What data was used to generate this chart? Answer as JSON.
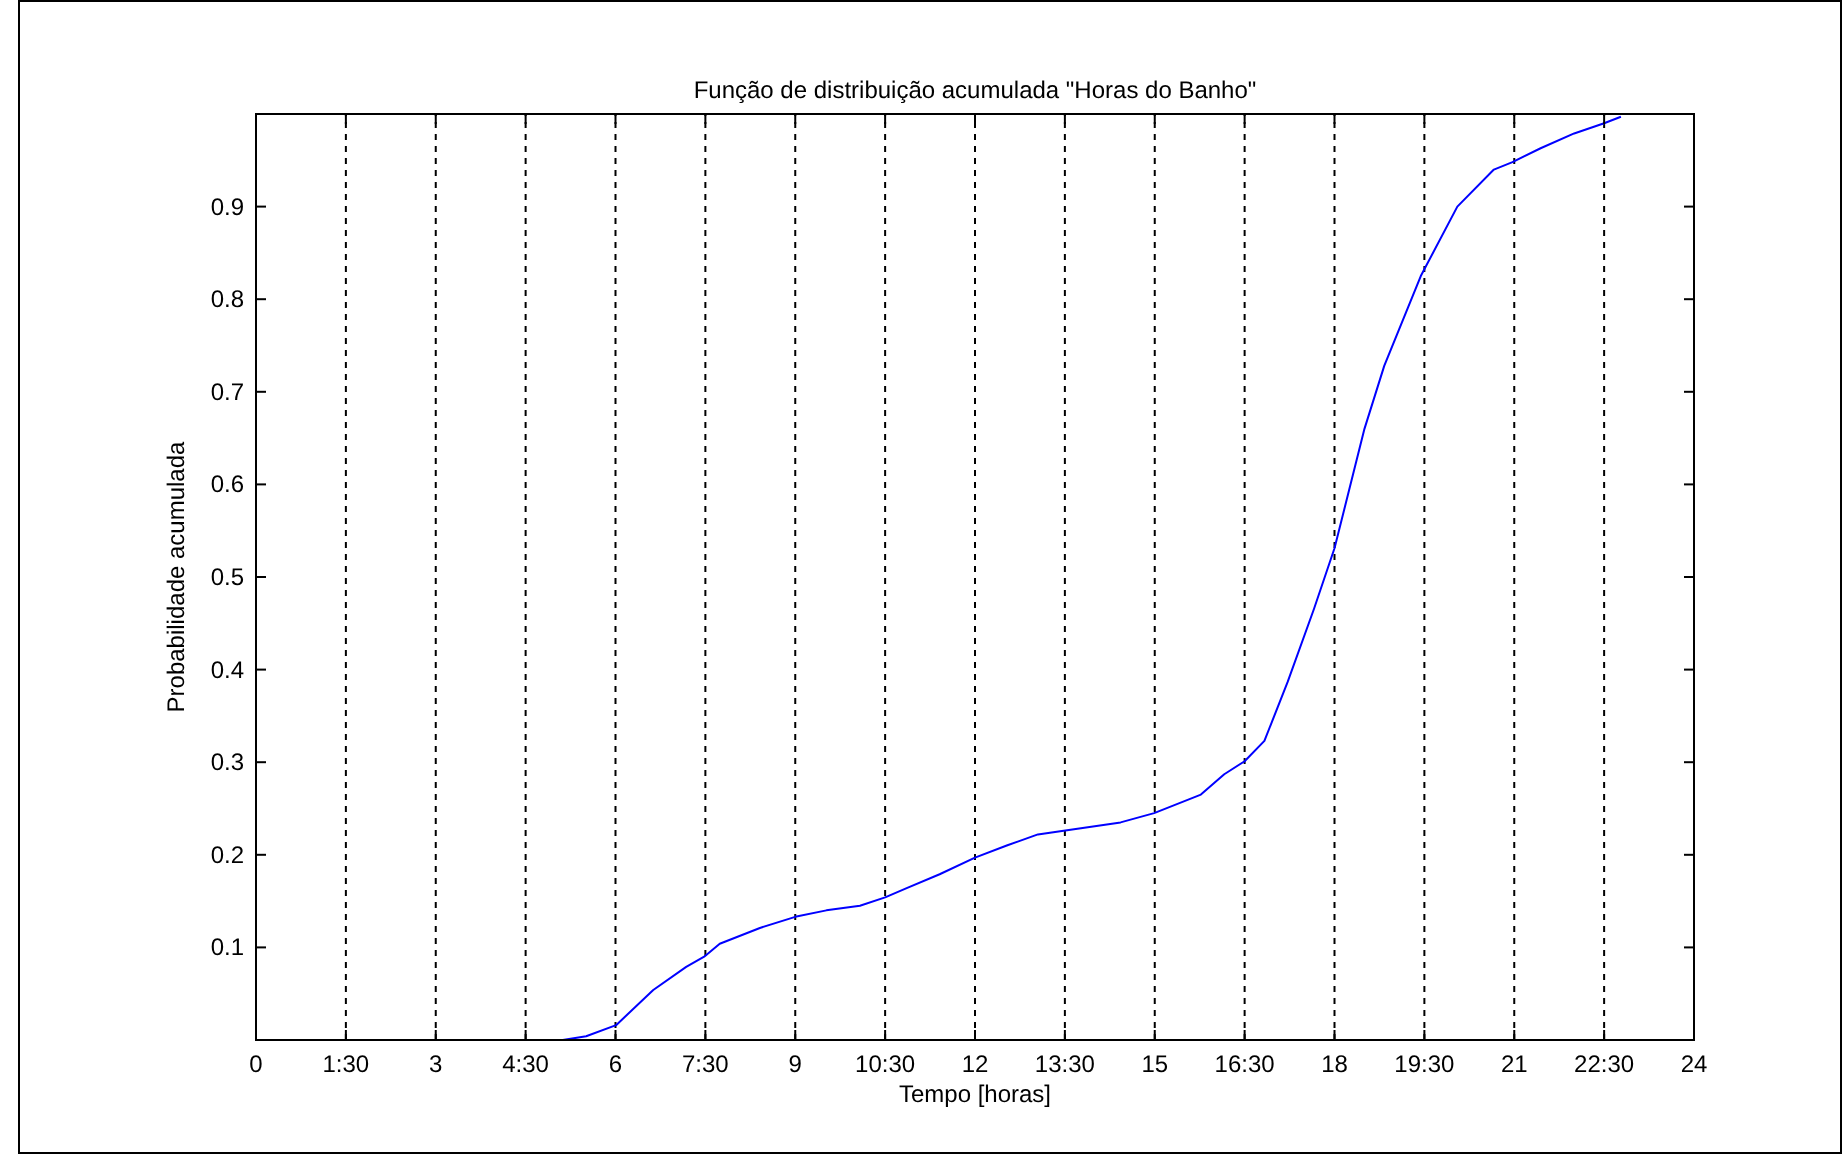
{
  "chart_data": {
    "type": "line",
    "title": "Função de distribuição acumulada \"Horas do Banho\"",
    "xlabel": "Tempo [horas]",
    "ylabel": "Probabilidade acumulada",
    "xlim": [
      0,
      24
    ],
    "xticks": [
      0,
      {
        "value": 1.5,
        "label": "1:30"
      },
      3,
      {
        "value": 4.5,
        "label": "4:30"
      },
      6,
      {
        "value": 7.5,
        "label": "7:30"
      },
      9,
      {
        "value": 10.5,
        "label": "10:30"
      },
      12,
      {
        "value": 13.5,
        "label": "13:30"
      },
      15,
      {
        "value": 16.5,
        "label": "16:30"
      },
      18,
      {
        "value": 19.5,
        "label": "19:30"
      },
      21,
      {
        "value": 22.5,
        "label": "22:30"
      },
      24
    ],
    "ylim": [
      0,
      1
    ],
    "yticks": [
      0.1,
      0.2,
      0.3,
      0.4,
      0.5,
      0.6,
      0.7,
      0.8,
      0.9
    ],
    "grid": "x",
    "line_style": "solid",
    "series": [
      {
        "color": "#0000ff",
        "x": [
          5.12,
          5.51,
          6.01,
          6.63,
          7.18,
          7.48,
          7.74,
          8.41,
          9.0,
          9.52,
          10.08,
          10.5,
          10.86,
          11.41,
          12.0,
          12.53,
          13.05,
          13.48,
          14.43,
          14.99,
          15.77,
          16.16,
          16.5,
          16.83,
          17.22,
          17.66,
          18.0,
          18.5,
          18.83,
          19.44,
          20.05,
          20.66,
          20.97,
          21.44,
          22.0,
          22.5,
          22.78
        ],
        "values": [
          0,
          0.004,
          0.016,
          0.054,
          0.079,
          0.09,
          0.104,
          0.121,
          0.133,
          0.14,
          0.145,
          0.154,
          0.164,
          0.179,
          0.197,
          0.21,
          0.222,
          0.226,
          0.235,
          0.245,
          0.265,
          0.287,
          0.301,
          0.323,
          0.387,
          0.466,
          0.531,
          0.66,
          0.728,
          0.825,
          0.9,
          0.94,
          0.948,
          0.963,
          0.979,
          0.99,
          0.997
        ]
      }
    ]
  }
}
